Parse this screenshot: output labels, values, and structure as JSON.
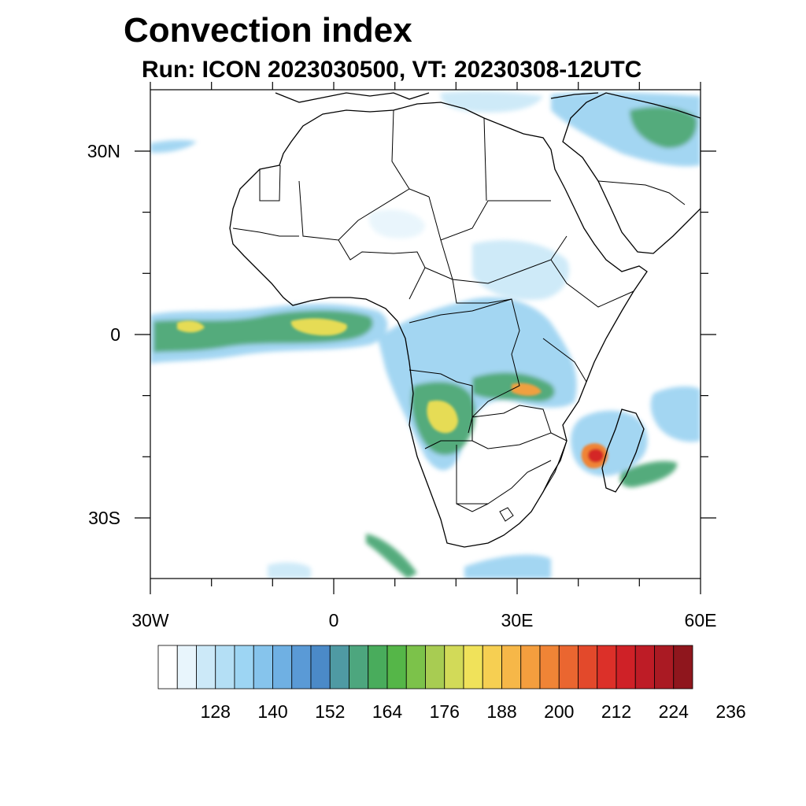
{
  "title": "Convection index",
  "subtitle": "Run: ICON 2023030500,  VT: 20230308-12UTC",
  "axes": {
    "lon_labels": [
      "30W",
      "0",
      "30E",
      "60E"
    ],
    "lat_labels": [
      "30N",
      "0",
      "30S"
    ],
    "lon_range": [
      -30,
      60
    ],
    "lat_range": [
      -40,
      40
    ]
  },
  "colorbar": {
    "labels": [
      "128",
      "140",
      "152",
      "164",
      "176",
      "188",
      "200",
      "212",
      "224",
      "236"
    ],
    "colors": [
      "#ffffff",
      "#e8f5fc",
      "#cce9f8",
      "#b4dff5",
      "#9dd5f3",
      "#86c4ec",
      "#6fb0e3",
      "#5a9ad6",
      "#4b8ac8",
      "#4f9aa3",
      "#4da67e",
      "#49ac5c",
      "#55b648",
      "#7cc24a",
      "#a8cc52",
      "#d2da58",
      "#f0e25a",
      "#f6cf52",
      "#f6b748",
      "#f49e3e",
      "#f08436",
      "#ea6630",
      "#e3492b",
      "#dc3029",
      "#cf2127",
      "#be1c26",
      "#aa1a23",
      "#8f161d"
    ]
  },
  "fields": {
    "low_color": "#9fd4f2",
    "mid_color": "#4ba776",
    "high_color": "#e6dc55",
    "peak_color": "#d42626"
  }
}
